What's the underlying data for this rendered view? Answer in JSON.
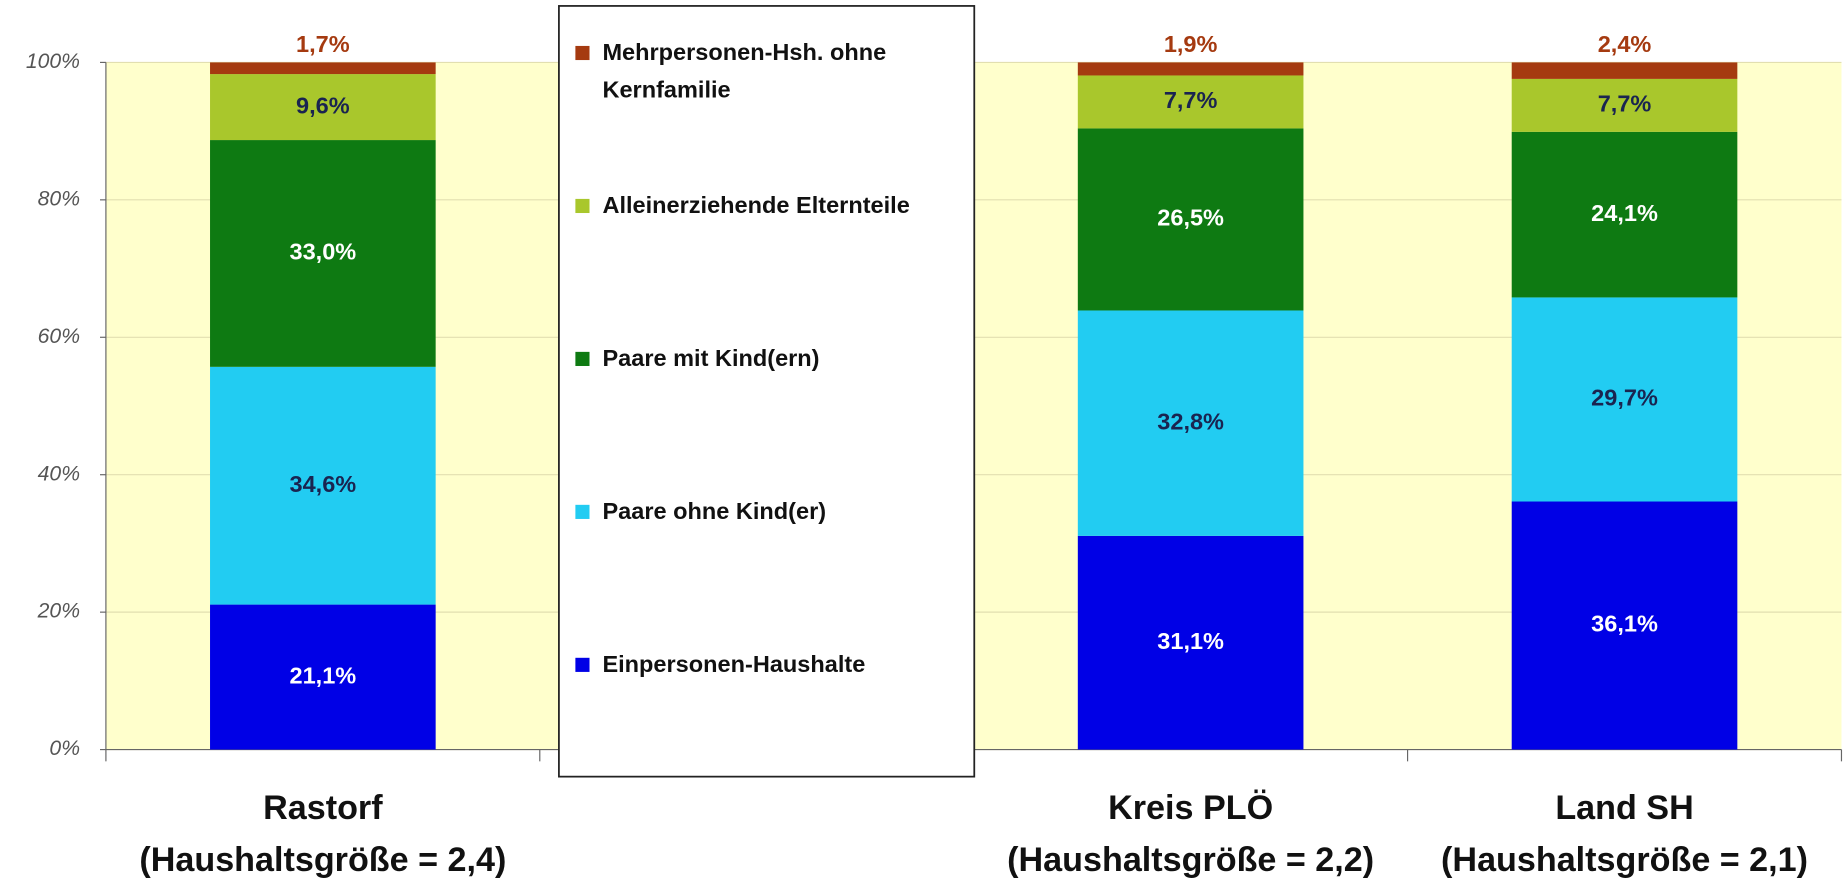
{
  "chart_data": {
    "type": "stacked_bar",
    "categories": [
      "Rastorf\n(Haushaltsgröße = 2,4)",
      null,
      "Kreis PLÖ\n(Haushaltsgröße = 2,2)",
      "Land SH\n(Haushaltsgröße = 2,1)"
    ],
    "series": [
      {
        "name": "Einpersonen-Haushalte",
        "color": "#0000e6",
        "label_color": "#ffffff",
        "values": [
          21.1,
          null,
          31.1,
          36.1
        ],
        "value_labels": [
          "21,1%",
          null,
          "31,1%",
          "36,1%"
        ]
      },
      {
        "name": "Paare ohne Kind(er)",
        "color": "#22ccf2",
        "label_color": "#1a2450",
        "values": [
          34.6,
          null,
          32.8,
          29.7
        ],
        "value_labels": [
          "34,6%",
          null,
          "32,8%",
          "29,7%"
        ]
      },
      {
        "name": "Paare mit Kind(ern)",
        "color": "#0e7a12",
        "label_color": "#ffffff",
        "values": [
          33.0,
          null,
          26.5,
          24.1
        ],
        "value_labels": [
          "33,0%",
          null,
          "26,5%",
          "24,1%"
        ]
      },
      {
        "name": "Alleinerziehende Elternteile",
        "color": "#a9c72c",
        "label_color": "#1a2450",
        "values": [
          9.6,
          null,
          7.7,
          7.7
        ],
        "value_labels": [
          "9,6%",
          null,
          "7,7%",
          "7,7%"
        ]
      },
      {
        "name": "Mehrpersonen-Hsh. ohne Kernfamilie",
        "color": "#a53a10",
        "label_color": "#a53a10",
        "values": [
          1.7,
          null,
          1.9,
          2.4
        ],
        "value_labels": [
          "1,7%",
          null,
          "1,9%",
          "2,4%"
        ]
      }
    ],
    "ylim": [
      0,
      100
    ],
    "yticks": [
      {
        "value": 0,
        "label": "0%"
      },
      {
        "value": 20,
        "label": "20%"
      },
      {
        "value": 40,
        "label": "40%"
      },
      {
        "value": 60,
        "label": "60%"
      },
      {
        "value": 80,
        "label": "80%"
      },
      {
        "value": 100,
        "label": "100%"
      }
    ],
    "grid": true,
    "legend": "center"
  }
}
